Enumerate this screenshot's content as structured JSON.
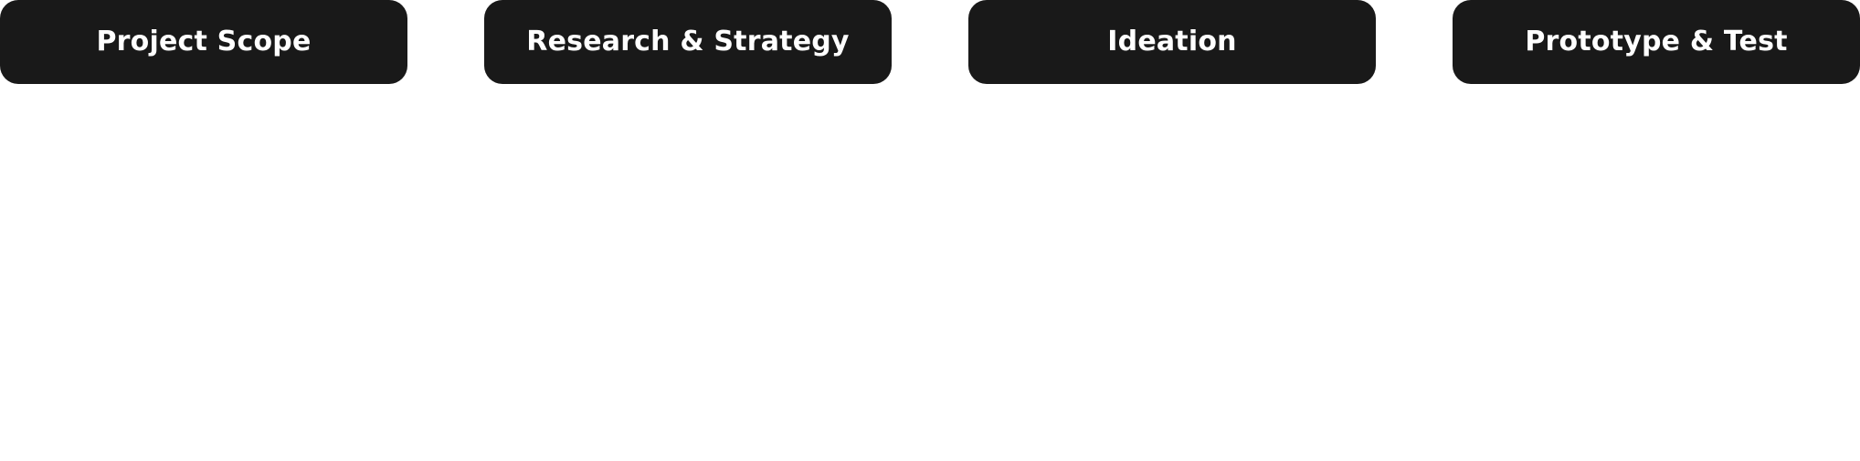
{
  "phases": [
    {
      "label": "Project Scope"
    },
    {
      "label": "Research & Strategy"
    },
    {
      "label": "Ideation"
    },
    {
      "label": "Prototype & Test"
    }
  ],
  "colors": {
    "pill_background": "#191919",
    "pill_text": "#ffffff",
    "page_background": "#ffffff"
  }
}
